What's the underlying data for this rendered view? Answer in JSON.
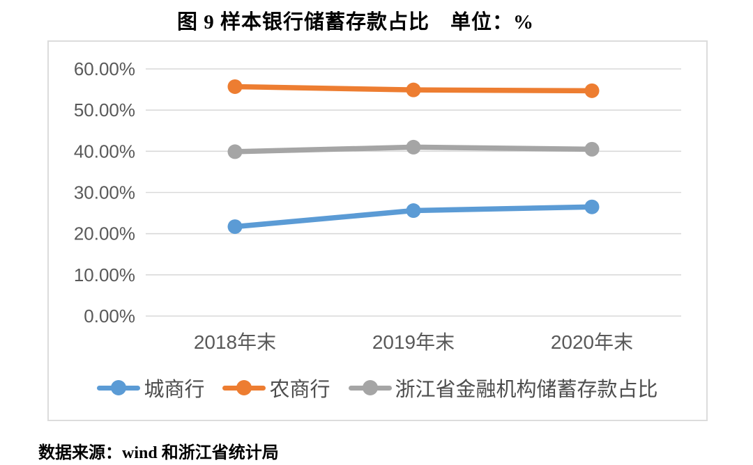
{
  "title": "图 9  样本银行储蓄存款占比　单位：%",
  "source": "数据来源：wind 和浙江省统计局",
  "colors": {
    "grid": "#d9d9d9",
    "axis_text": "#595959",
    "border": "#dcdcdc",
    "series_blue": "#5B9BD5",
    "series_orange": "#ED7D31",
    "series_gray": "#A5A5A5"
  },
  "chart_data": {
    "type": "line",
    "title": "图 9  样本银行储蓄存款占比　单位：%",
    "xlabel": "",
    "ylabel": "",
    "categories": [
      "2018年末",
      "2019年末",
      "2020年末"
    ],
    "series": [
      {
        "name": "城商行",
        "color": "#5B9BD5",
        "values": [
          21.7,
          25.6,
          26.5
        ]
      },
      {
        "name": "农商行",
        "color": "#ED7D31",
        "values": [
          55.7,
          54.9,
          54.7
        ]
      },
      {
        "name": "浙江省金融机构储蓄存款占比",
        "color": "#A5A5A5",
        "values": [
          39.9,
          41.0,
          40.5
        ]
      }
    ],
    "ylim": [
      0,
      60
    ],
    "ytick_step": 10,
    "ytick_labels": [
      "0.00%",
      "10.00%",
      "20.00%",
      "30.00%",
      "40.00%",
      "50.00%",
      "60.00%"
    ],
    "grid": true,
    "legend_position": "bottom"
  }
}
